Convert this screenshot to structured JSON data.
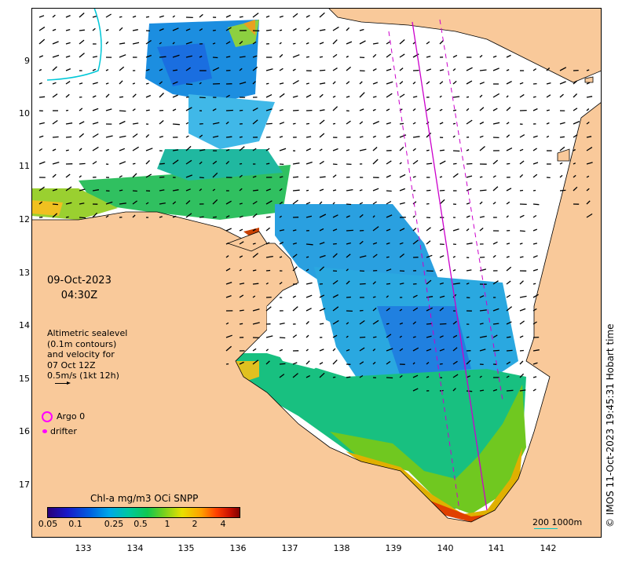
{
  "map": {
    "date": "09-Oct-2023",
    "time": "04:30Z",
    "velocity_legend": [
      "Altimetric sealevel",
      "(0.1m contours)",
      "and velocity for",
      "07 Oct 12Z",
      "0.5m/s (1kt 12h)"
    ],
    "argo_label": "Argo 0",
    "drifter_label": "drifter",
    "colorbar_title": "Chl-a mg/m3 OCi SNPP",
    "colorbar_ticks": [
      "0.05",
      "0.1",
      "0.25",
      "0.5",
      "1",
      "2",
      "4"
    ],
    "scale_label": "200  1000m",
    "credit": "© IMOS 11-Oct-2023 19:45:31 Hobart time",
    "lat_ticks": [
      "9",
      "10",
      "11",
      "12",
      "13",
      "14",
      "15",
      "16",
      "17"
    ],
    "lon_ticks": [
      "133",
      "134",
      "135",
      "136",
      "137",
      "138",
      "139",
      "140",
      "141",
      "142"
    ],
    "colors": {
      "land": "#f9c99a",
      "coast": "#000000",
      "track": "#cc00cc",
      "argo": "#ff00ff",
      "scale": "#00c8c8"
    }
  }
}
